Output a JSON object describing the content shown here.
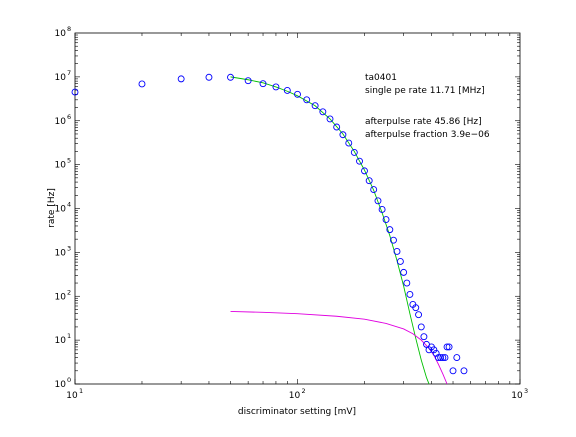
{
  "chart_data": {
    "type": "scatter",
    "xlabel": "discriminator setting [mV]",
    "ylabel": "rate [Hz]",
    "xscale": "log",
    "yscale": "log",
    "xlim": [
      10,
      1000
    ],
    "ylim": [
      1,
      100000000
    ],
    "grid": false,
    "x_ticks": [
      {
        "value": 10,
        "base": "10",
        "exp": "1"
      },
      {
        "value": 100,
        "base": "10",
        "exp": "2"
      },
      {
        "value": 1000,
        "base": "10",
        "exp": "3"
      }
    ],
    "y_ticks": [
      {
        "value": 1,
        "base": "10",
        "exp": "0"
      },
      {
        "value": 10,
        "base": "10",
        "exp": "1"
      },
      {
        "value": 100,
        "base": "10",
        "exp": "2"
      },
      {
        "value": 1000,
        "base": "10",
        "exp": "3"
      },
      {
        "value": 10000,
        "base": "10",
        "exp": "4"
      },
      {
        "value": 100000,
        "base": "10",
        "exp": "5"
      },
      {
        "value": 1000000,
        "base": "10",
        "exp": "6"
      },
      {
        "value": 10000000,
        "base": "10",
        "exp": "7"
      },
      {
        "value": 100000000,
        "base": "10",
        "exp": "8"
      }
    ],
    "annotations": [
      "ta0401",
      "single pe rate 11.71 [MHz]",
      "afterpulse rate 45.86 [Hz]",
      "afterpulse fraction 3.9e−06"
    ],
    "series": [
      {
        "kind": "markers",
        "color": "#0000ff",
        "points": [
          [
            10,
            4500000
          ],
          [
            20,
            6900000
          ],
          [
            30,
            9000000
          ],
          [
            40,
            9800000
          ],
          [
            50,
            9800000
          ],
          [
            60,
            8200000
          ],
          [
            70,
            7000000
          ],
          [
            80,
            5900000
          ],
          [
            90,
            4900000
          ],
          [
            100,
            4000000
          ],
          [
            110,
            3000000
          ],
          [
            120,
            2200000
          ],
          [
            130,
            1600000
          ],
          [
            140,
            1100000
          ],
          [
            150,
            720000
          ],
          [
            160,
            480000
          ],
          [
            170,
            310000
          ],
          [
            180,
            190000
          ],
          [
            190,
            120000
          ],
          [
            200,
            72000
          ],
          [
            210,
            43000
          ],
          [
            220,
            27000
          ],
          [
            230,
            15000
          ],
          [
            240,
            9500
          ],
          [
            250,
            5600
          ],
          [
            260,
            3300
          ],
          [
            270,
            1900
          ],
          [
            280,
            1050
          ],
          [
            290,
            620
          ],
          [
            300,
            350
          ],
          [
            310,
            200
          ],
          [
            320,
            110
          ],
          [
            330,
            65
          ],
          [
            340,
            55
          ],
          [
            350,
            38
          ],
          [
            360,
            20
          ],
          [
            370,
            12
          ],
          [
            380,
            8
          ],
          [
            390,
            6
          ],
          [
            400,
            7
          ],
          [
            410,
            6
          ],
          [
            420,
            5
          ],
          [
            430,
            4
          ],
          [
            440,
            4
          ],
          [
            450,
            4
          ],
          [
            460,
            4
          ],
          [
            470,
            7
          ],
          [
            480,
            7
          ],
          [
            500,
            2
          ],
          [
            520,
            4
          ],
          [
            560,
            2
          ]
        ]
      },
      {
        "kind": "line",
        "color": "#00c000",
        "points": [
          [
            50,
            10000000
          ],
          [
            60,
            8600000
          ],
          [
            70,
            7300000
          ],
          [
            80,
            5900000
          ],
          [
            90,
            4700000
          ],
          [
            100,
            3700000
          ],
          [
            120,
            2200000
          ],
          [
            140,
            1100000
          ],
          [
            160,
            500000
          ],
          [
            180,
            200000
          ],
          [
            200,
            75000
          ],
          [
            220,
            26000
          ],
          [
            240,
            8000
          ],
          [
            260,
            2400
          ],
          [
            280,
            650
          ],
          [
            300,
            170
          ],
          [
            320,
            40
          ],
          [
            340,
            11
          ],
          [
            360,
            3.5
          ],
          [
            380,
            1.4
          ],
          [
            390,
            1
          ]
        ]
      },
      {
        "kind": "line",
        "color": "#e000e0",
        "points": [
          [
            50,
            45
          ],
          [
            70,
            43
          ],
          [
            100,
            40
          ],
          [
            150,
            35
          ],
          [
            200,
            30
          ],
          [
            250,
            24
          ],
          [
            300,
            18
          ],
          [
            330,
            14
          ],
          [
            360,
            10
          ],
          [
            390,
            6.5
          ],
          [
            410,
            4.5
          ],
          [
            430,
            2.8
          ],
          [
            450,
            1.7
          ],
          [
            470,
            1
          ]
        ]
      }
    ]
  }
}
